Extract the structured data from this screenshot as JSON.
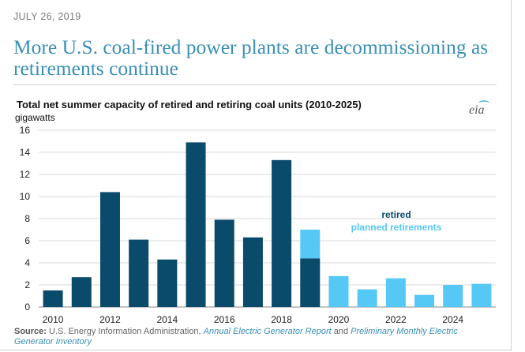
{
  "header": {
    "date": "JULY 26, 2019",
    "headline": "More U.S. coal-fired power plants are decommissioning as retirements continue"
  },
  "logo": {
    "text": "eia"
  },
  "source": {
    "label": "Source:",
    "text1": " U.S. Energy Information Administration, ",
    "link1": "Annual Electric Generator Report",
    "text2": " and ",
    "link2": "Preliminary Monthly Electric Generator Inventory"
  },
  "colors": {
    "retired": "#0a4a6b",
    "planned": "#55c8f5",
    "grid": "#d9d9d9",
    "headline": "#3a8fb7"
  },
  "chart_data": {
    "type": "bar",
    "stacked": true,
    "title": "Total net summer capacity of retired and retiring coal units (2010-2025)",
    "ylabel": "gigawatts",
    "ylim": [
      0,
      16
    ],
    "yticks": [
      0,
      2,
      4,
      6,
      8,
      10,
      12,
      14,
      16
    ],
    "categories": [
      2010,
      2011,
      2012,
      2013,
      2014,
      2015,
      2016,
      2017,
      2018,
      2019,
      2020,
      2021,
      2022,
      2023,
      2024,
      2025
    ],
    "xtick_labels": [
      "2010",
      "",
      "2012",
      "",
      "2014",
      "",
      "2016",
      "",
      "2018",
      "",
      "2020",
      "",
      "2022",
      "",
      "2024",
      ""
    ],
    "series": [
      {
        "name": "retired",
        "color": "#0a4a6b",
        "values": [
          1.5,
          2.7,
          10.4,
          6.1,
          4.3,
          14.9,
          7.9,
          6.3,
          13.3,
          4.4,
          0,
          0,
          0,
          0,
          0,
          0
        ]
      },
      {
        "name": "planned retirements",
        "color": "#55c8f5",
        "values": [
          0,
          0,
          0,
          0,
          0,
          0,
          0,
          0,
          0,
          2.6,
          2.8,
          1.6,
          2.6,
          1.1,
          2.0,
          2.1
        ]
      }
    ],
    "grid": true,
    "legend": "inside, right-center"
  }
}
